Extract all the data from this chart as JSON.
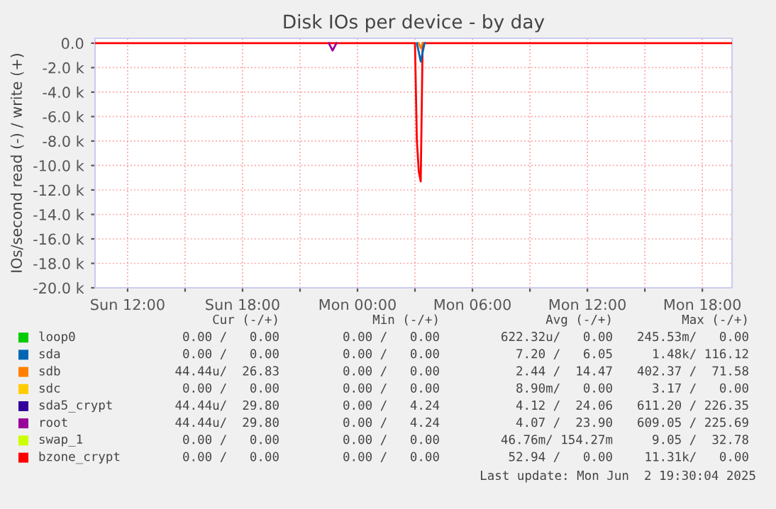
{
  "chart_data": {
    "type": "line",
    "title": "Disk IOs per device - by day",
    "ylabel": "IOs/second read (-) / write (+)",
    "xlim": [
      "2025-06-01T10:18",
      "2025-06-02T19:33"
    ],
    "ylim": [
      -20000,
      400
    ],
    "xticks": [
      {
        "value": "2025-06-01T12:00",
        "label": "Sun 12:00"
      },
      {
        "value": "2025-06-01T15:00",
        "label": null
      },
      {
        "value": "2025-06-01T18:00",
        "label": "Sun 18:00"
      },
      {
        "value": "2025-06-01T21:00",
        "label": null
      },
      {
        "value": "2025-06-02T00:00",
        "label": "Mon 00:00"
      },
      {
        "value": "2025-06-02T03:00",
        "label": null
      },
      {
        "value": "2025-06-02T06:00",
        "label": "Mon 06:00"
      },
      {
        "value": "2025-06-02T09:00",
        "label": null
      },
      {
        "value": "2025-06-02T12:00",
        "label": "Mon 12:00"
      },
      {
        "value": "2025-06-02T15:00",
        "label": null
      },
      {
        "value": "2025-06-02T18:00",
        "label": "Mon 18:00"
      }
    ],
    "yticks": [
      {
        "value": 0,
        "label": "0.0"
      },
      {
        "value": -2000,
        "label": "-2.0 k"
      },
      {
        "value": -4000,
        "label": "-4.0 k"
      },
      {
        "value": -6000,
        "label": "-6.0 k"
      },
      {
        "value": -8000,
        "label": "-8.0 k"
      },
      {
        "value": -10000,
        "label": "-10.0 k"
      },
      {
        "value": -12000,
        "label": "-12.0 k"
      },
      {
        "value": -14000,
        "label": "-14.0 k"
      },
      {
        "value": -16000,
        "label": "-16.0 k"
      },
      {
        "value": -18000,
        "label": "-18.0 k"
      },
      {
        "value": -20000,
        "label": "-20.0 k"
      }
    ],
    "grid": true,
    "legend": "bottom",
    "series": [
      {
        "name": "loop0",
        "color": "#00cc00"
      },
      {
        "name": "sda",
        "color": "#0066b3",
        "x": [
          "2025-06-02T03:06",
          "2025-06-02T03:18",
          "2025-06-02T03:30"
        ],
        "values": [
          0,
          -1500,
          0
        ]
      },
      {
        "name": "sdb",
        "color": "#ff8000",
        "x": [
          "2025-06-02T03:12",
          "2025-06-02T03:18",
          "2025-06-02T03:24"
        ],
        "values": [
          0,
          -400,
          0
        ]
      },
      {
        "name": "sdc",
        "color": "#ffcc00"
      },
      {
        "name": "sda5_crypt",
        "color": "#330099"
      },
      {
        "name": "root",
        "color": "#990099",
        "x": [
          "2025-06-01T22:30",
          "2025-06-01T22:42",
          "2025-06-01T22:54"
        ],
        "values": [
          0,
          -600,
          0
        ]
      },
      {
        "name": "swap_1",
        "color": "#ccff00"
      },
      {
        "name": "bzone_crypt",
        "color": "#ff0000",
        "x": [
          "2025-06-01T10:18",
          "2025-06-02T03:00",
          "2025-06-02T03:06",
          "2025-06-02T03:12",
          "2025-06-02T03:18",
          "2025-06-02T03:24",
          "2025-06-02T19:30"
        ],
        "values": [
          0,
          0,
          -8000,
          -10500,
          -11300,
          0,
          0
        ]
      }
    ],
    "annotations": [
      "Cur (-/+)",
      "Min (-/+)",
      "Avg (-/+)",
      "Max (-/+)",
      "0.00 /   0.00",
      "0.00 /   0.00",
      "622.32u/   0.00",
      "245.53m/   0.00",
      "0.00 /   0.00",
      "0.00 /   0.00",
      "7.20 /   6.05",
      "1.48k/ 116.12",
      "44.44u/  26.83",
      "0.00 /   0.00",
      "2.44 /  14.47",
      "402.37 /  71.58",
      "0.00 /   0.00",
      "0.00 /   0.00",
      "8.90m/   0.00",
      "3.17 /   0.00",
      "44.44u/  29.80",
      "0.00 /   4.24",
      "4.12 /  24.06",
      "611.20 / 226.35",
      "44.44u/  29.80",
      "0.00 /   4.24",
      "4.07 /  23.90",
      "609.05 / 225.69",
      "0.00 /   0.00",
      "0.00 /   0.00",
      "46.76m/ 154.27m",
      "9.05 /  32.78",
      "0.00 /   0.00",
      "0.00 /   0.00",
      "52.94 /   0.00",
      "11.31k/   0.00",
      "Last update: Mon Jun  2 19:30:04 2025"
    ]
  }
}
